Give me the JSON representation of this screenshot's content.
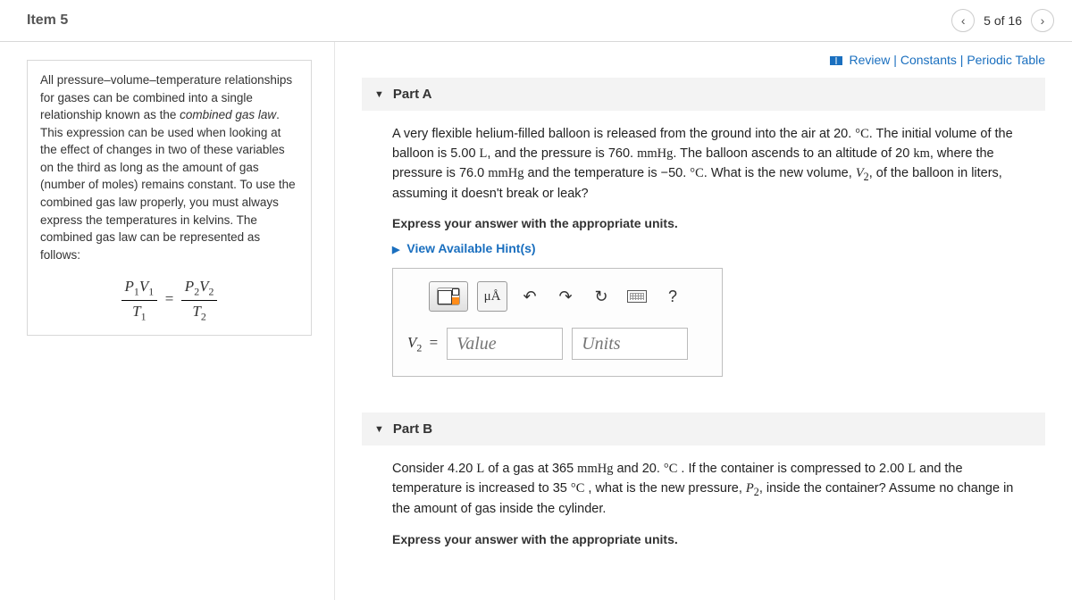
{
  "header": {
    "item_title": "Item 5",
    "position": "5 of 16"
  },
  "top_links": {
    "review": "Review",
    "constants": "Constants",
    "periodic": "Periodic Table"
  },
  "left_panel": {
    "paragraph_html": "All pressure–volume–temperature relationships for gases can be combined into a single relationship known as the <span class='italic'>combined gas law</span>. This expression can be used when looking at the effect of changes in two of these variables on the third as long as the amount of gas (number of moles) remains constant. To use the combined gas law properly, you must always express the temperatures in kelvins. The combined gas law can be represented as follows:"
  },
  "part_a": {
    "title": "Part A",
    "question_html": "A very flexible helium-filled balloon is released from the ground into the air at 20. <span class='ser'>°C</span>. The initial volume of the balloon is 5.00 <span class='ser'>L</span>, and the pressure is 760. <span class='ser'>mmHg</span>. The balloon ascends to an altitude of 20 <span class='ser'>km</span>, where the pressure is 76.0 <span class='ser'>mmHg</span> and the temperature is −50. <span class='ser'>°C</span>. What is the new volume, <span class='ser'><i>V</i><sub>2</sub></span>, of the balloon in liters, assuming it doesn't break or leak?",
    "instruction": "Express your answer with the appropriate units.",
    "hints": "View Available Hint(s)",
    "toolbar": {
      "mua": "μÅ",
      "undo": "↶",
      "redo": "↷",
      "reset": "↻",
      "help": "?"
    },
    "answer": {
      "label_var": "V",
      "label_sub": "2",
      "value_placeholder": "Value",
      "units_placeholder": "Units"
    }
  },
  "part_b": {
    "title": "Part B",
    "question_html": "Consider 4.20 <span class='ser'>L</span> of a gas at 365 <span class='ser'>mmHg</span> and 20. <span class='ser'>°C</span> . If the container is compressed to 2.00 <span class='ser'>L</span> and the temperature is increased to 35 <span class='ser'>°C</span> , what is the new pressure, <span class='ser'><i>P</i><sub>2</sub></span>, inside the container? Assume no change in the amount of gas inside the cylinder.",
    "instruction": "Express your answer with the appropriate units."
  },
  "colors": {
    "link": "#1a6fbf",
    "border": "#d8d8d8"
  }
}
